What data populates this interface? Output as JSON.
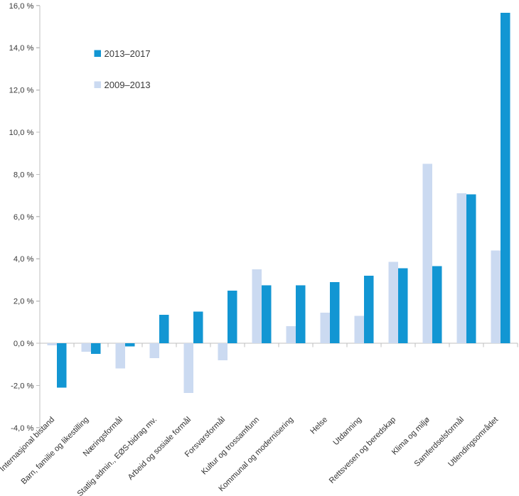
{
  "chart_data": {
    "type": "bar",
    "title": "",
    "xlabel": "",
    "ylabel": "",
    "unit": "%",
    "categories": [
      "Internasjonal bistand",
      "Barn, familie og likestilling",
      "Næringsformål",
      "Statlig admin., EØS-bidrag mv.",
      "Arbeid og sosiale formål",
      "Forsvarsformål",
      "Kultur og trossamfunn",
      "Kommunal og modernisering",
      "Helse",
      "Utdanning",
      "Rettsvesen og beredskap",
      "Klima og miljø",
      "Samferdselsformål",
      "Utlendingsområdet"
    ],
    "series": [
      {
        "name": "2013–2017",
        "color": "#1296d3",
        "bar_position": "right",
        "values": [
          -2.1,
          -0.5,
          -0.15,
          1.35,
          1.5,
          2.5,
          2.75,
          2.75,
          2.9,
          3.2,
          3.55,
          3.65,
          7.05,
          15.65
        ]
      },
      {
        "name": "2009–2013",
        "color": "#cbdaf1",
        "bar_position": "left",
        "values": [
          -0.1,
          -0.4,
          -1.2,
          -0.7,
          -2.35,
          -0.8,
          3.5,
          0.8,
          1.45,
          1.3,
          3.85,
          8.5,
          7.1,
          4.4
        ]
      }
    ],
    "ylim": [
      -4,
      16
    ],
    "y_tick_step": 2,
    "y_tick_labels": [
      "16,0 %",
      "14,0 %",
      "12,0 %",
      "10,0 %",
      "8,0 %",
      "6,0 %",
      "4,0 %",
      "2,0 %",
      "0,0 %",
      "-2,0 %",
      "-4,0 %"
    ],
    "grid": "off",
    "legend_position": "inside-top-left",
    "colors": {
      "axis": "#bfbfbf",
      "text": "#3a3a3a",
      "background": "#ffffff"
    }
  }
}
